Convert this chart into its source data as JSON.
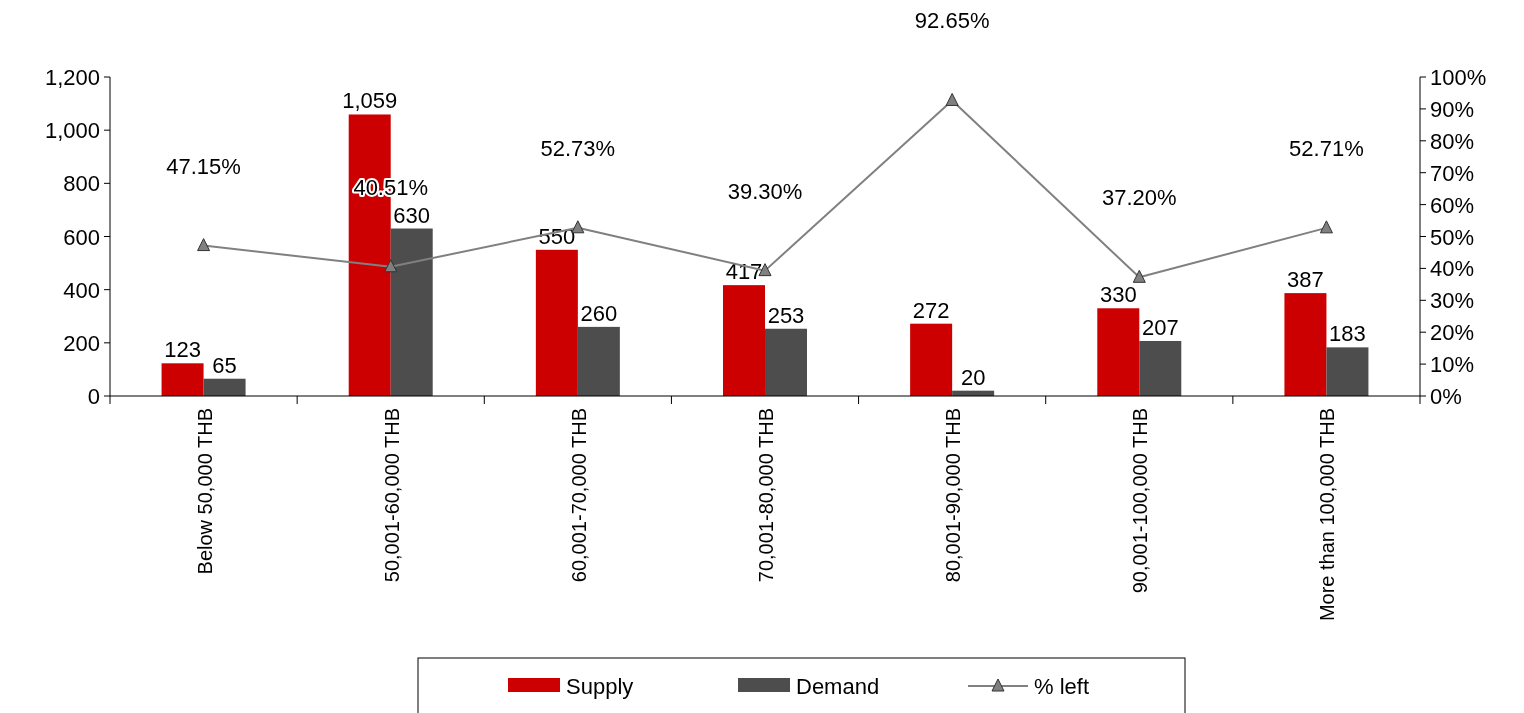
{
  "chart_data": {
    "type": "bar",
    "categories": [
      "Below 50,000 THB",
      "50,001-60,000 THB",
      "60,001-70,000 THB",
      "70,001-80,000 THB",
      "80,001-90,000 THB",
      "90,001-100,000 THB",
      "More than 100,000 THB"
    ],
    "series": [
      {
        "name": "Supply",
        "color": "#cc0000",
        "values": [
          123,
          1059,
          550,
          417,
          272,
          330,
          387
        ],
        "value_labels": [
          "123",
          "1,059",
          "550",
          "417",
          "272",
          "330",
          "387"
        ]
      },
      {
        "name": "Demand",
        "color": "#4d4d4d",
        "values": [
          65,
          630,
          260,
          253,
          20,
          207,
          183
        ],
        "value_labels": [
          "65",
          "630",
          "260",
          "253",
          "20",
          "207",
          "183"
        ]
      },
      {
        "name": "% left",
        "type": "line",
        "axis": "y2",
        "color": "#808080",
        "marker": "triangle",
        "values": [
          47.15,
          40.51,
          52.73,
          39.3,
          92.65,
          37.2,
          52.71
        ],
        "value_labels": [
          "47.15%",
          "40.51%",
          "52.73%",
          "39.30%",
          "92.65%",
          "37.20%",
          "52.71%"
        ]
      }
    ],
    "ylim": [
      0,
      1200
    ],
    "yticks": [
      0,
      200,
      400,
      600,
      800,
      {
        "value": 1000,
        "label": "1,000"
      },
      {
        "value": 1200,
        "label": "1,200"
      }
    ],
    "y2lim": [
      0,
      100
    ],
    "y2ticks": [
      {
        "value": 0,
        "label": "0%"
      },
      {
        "value": 10,
        "label": "10%"
      },
      {
        "value": 20,
        "label": "20%"
      },
      {
        "value": 30,
        "label": "30%"
      },
      {
        "value": 40,
        "label": "40%"
      },
      {
        "value": 50,
        "label": "50%"
      },
      {
        "value": 60,
        "label": "60%"
      },
      {
        "value": 70,
        "label": "70%"
      },
      {
        "value": 80,
        "label": "80%"
      },
      {
        "value": 90,
        "label": "90%"
      },
      {
        "value": 100,
        "label": "100%"
      }
    ],
    "legend": "bottom"
  }
}
